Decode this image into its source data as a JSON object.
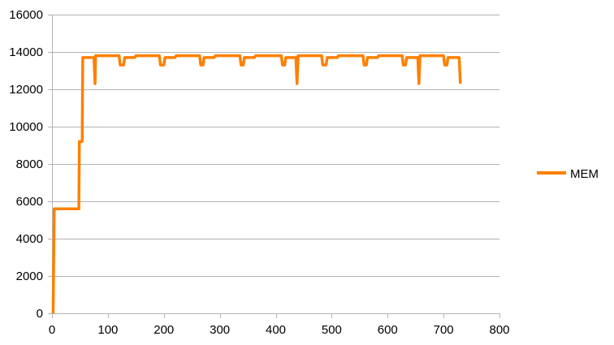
{
  "chart_data": {
    "type": "line",
    "title": "",
    "xlabel": "",
    "ylabel": "",
    "xlim": [
      0,
      800
    ],
    "ylim": [
      0,
      16000
    ],
    "x_ticks": [
      0,
      100,
      200,
      300,
      400,
      500,
      600,
      700,
      800
    ],
    "y_ticks": [
      0,
      2000,
      4000,
      6000,
      8000,
      10000,
      12000,
      14000,
      16000
    ],
    "grid": {
      "horizontal": true,
      "vertical": false
    },
    "legend": {
      "position": "right",
      "entries": [
        "MEM"
      ]
    },
    "series": [
      {
        "name": "MEM",
        "color": "#ff8000",
        "points": [
          [
            2,
            0
          ],
          [
            4,
            5600
          ],
          [
            48,
            5600
          ],
          [
            49,
            9200
          ],
          [
            54,
            9200
          ],
          [
            55,
            13700
          ],
          [
            75,
            13700
          ],
          [
            77,
            12300
          ],
          [
            78,
            13800
          ],
          [
            120,
            13800
          ],
          [
            122,
            13300
          ],
          [
            128,
            13300
          ],
          [
            130,
            13700
          ],
          [
            148,
            13700
          ],
          [
            150,
            13800
          ],
          [
            192,
            13800
          ],
          [
            194,
            13300
          ],
          [
            200,
            13300
          ],
          [
            202,
            13700
          ],
          [
            220,
            13700
          ],
          [
            222,
            13800
          ],
          [
            264,
            13800
          ],
          [
            266,
            13300
          ],
          [
            270,
            13300
          ],
          [
            272,
            13700
          ],
          [
            290,
            13700
          ],
          [
            292,
            13800
          ],
          [
            336,
            13800
          ],
          [
            338,
            13300
          ],
          [
            342,
            13300
          ],
          [
            344,
            13700
          ],
          [
            362,
            13700
          ],
          [
            364,
            13800
          ],
          [
            410,
            13800
          ],
          [
            412,
            13300
          ],
          [
            416,
            13300
          ],
          [
            418,
            13700
          ],
          [
            436,
            13700
          ],
          [
            438,
            12300
          ],
          [
            440,
            13800
          ],
          [
            482,
            13800
          ],
          [
            484,
            13300
          ],
          [
            490,
            13300
          ],
          [
            492,
            13700
          ],
          [
            510,
            13700
          ],
          [
            512,
            13800
          ],
          [
            556,
            13800
          ],
          [
            558,
            13300
          ],
          [
            562,
            13300
          ],
          [
            564,
            13700
          ],
          [
            582,
            13700
          ],
          [
            584,
            13800
          ],
          [
            626,
            13800
          ],
          [
            628,
            13300
          ],
          [
            632,
            13300
          ],
          [
            634,
            13700
          ],
          [
            654,
            13700
          ],
          [
            656,
            12300
          ],
          [
            658,
            13800
          ],
          [
            700,
            13800
          ],
          [
            702,
            13300
          ],
          [
            706,
            13300
          ],
          [
            708,
            13700
          ],
          [
            728,
            13700
          ],
          [
            730,
            12300
          ]
        ]
      }
    ]
  }
}
